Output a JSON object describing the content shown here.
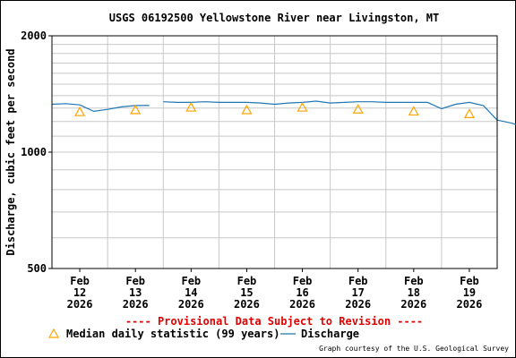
{
  "chart_data": {
    "type": "line",
    "title": "USGS 06192500 Yellowstone River near Livingston, MT",
    "ylabel": "Discharge, cubic feet per second",
    "y_scale": "log",
    "ylim": [
      500,
      2000
    ],
    "y_ticks": [
      500,
      1000,
      2000
    ],
    "xlim": [
      "2026-02-11T12:00",
      "2026-02-19T12:00"
    ],
    "x_ticks": [
      {
        "date": "2026-02-12",
        "lines": [
          "Feb",
          "12",
          "2026"
        ]
      },
      {
        "date": "2026-02-13",
        "lines": [
          "Feb",
          "13",
          "2026"
        ]
      },
      {
        "date": "2026-02-14",
        "lines": [
          "Feb",
          "14",
          "2026"
        ]
      },
      {
        "date": "2026-02-15",
        "lines": [
          "Feb",
          "15",
          "2026"
        ]
      },
      {
        "date": "2026-02-16",
        "lines": [
          "Feb",
          "16",
          "2026"
        ]
      },
      {
        "date": "2026-02-17",
        "lines": [
          "Feb",
          "17",
          "2026"
        ]
      },
      {
        "date": "2026-02-18",
        "lines": [
          "Feb",
          "18",
          "2026"
        ]
      },
      {
        "date": "2026-02-19",
        "lines": [
          "Feb",
          "19",
          "2026"
        ]
      }
    ],
    "grid": true,
    "series": [
      {
        "name": "Discharge",
        "color": "#1f77b4",
        "segments": [
          {
            "x": [
              "2026-02-11T12:00",
              "2026-02-11T18:00",
              "2026-02-12T00:00",
              "2026-02-12T06:00",
              "2026-02-12T12:00",
              "2026-02-12T18:00",
              "2026-02-13T00:00",
              "2026-02-13T06:00"
            ],
            "y": [
              1330,
              1335,
              1325,
              1275,
              1290,
              1310,
              1320,
              1320
            ]
          },
          {
            "x": [
              "2026-02-13T12:00",
              "2026-02-13T18:00",
              "2026-02-14T00:00",
              "2026-02-14T06:00",
              "2026-02-14T12:00",
              "2026-02-14T18:00",
              "2026-02-15T00:00",
              "2026-02-15T06:00",
              "2026-02-15T12:00",
              "2026-02-15T18:00",
              "2026-02-16T00:00",
              "2026-02-16T06:00",
              "2026-02-16T12:00",
              "2026-02-16T18:00",
              "2026-02-17T00:00",
              "2026-02-17T06:00",
              "2026-02-17T12:00",
              "2026-02-17T18:00",
              "2026-02-18T00:00",
              "2026-02-18T06:00",
              "2026-02-18T12:00",
              "2026-02-18T18:00",
              "2026-02-19T00:00",
              "2026-02-19T06:00",
              "2026-02-19T12:00"
            ],
            "y": [
              1350,
              1345,
              1345,
              1350,
              1345,
              1345,
              1345,
              1340,
              1330,
              1340,
              1345,
              1355,
              1340,
              1345,
              1350,
              1350,
              1345,
              1345,
              1345,
              1345,
              1295,
              1330,
              1345,
              1320,
              1210
            ]
          },
          {
            "x": [
              "2026-02-19T12:00",
              "2026-02-19T18:00",
              "2026-02-20T00:00"
            ],
            "y": [
              1210,
              1190,
              1160
            ]
          }
        ]
      },
      {
        "name": "Median daily statistic (99 years)",
        "marker": "triangle",
        "color": "#ffa500",
        "x": [
          "2026-02-12",
          "2026-02-13",
          "2026-02-14",
          "2026-02-15",
          "2026-02-16",
          "2026-02-17",
          "2026-02-18",
          "2026-02-19"
        ],
        "y": [
          1270,
          1285,
          1305,
          1285,
          1305,
          1290,
          1275,
          1255
        ]
      }
    ]
  },
  "provisional_notice": "---- Provisional Data Subject to Revision ----",
  "credit": "Graph courtesy of the U.S. Geological Survey"
}
